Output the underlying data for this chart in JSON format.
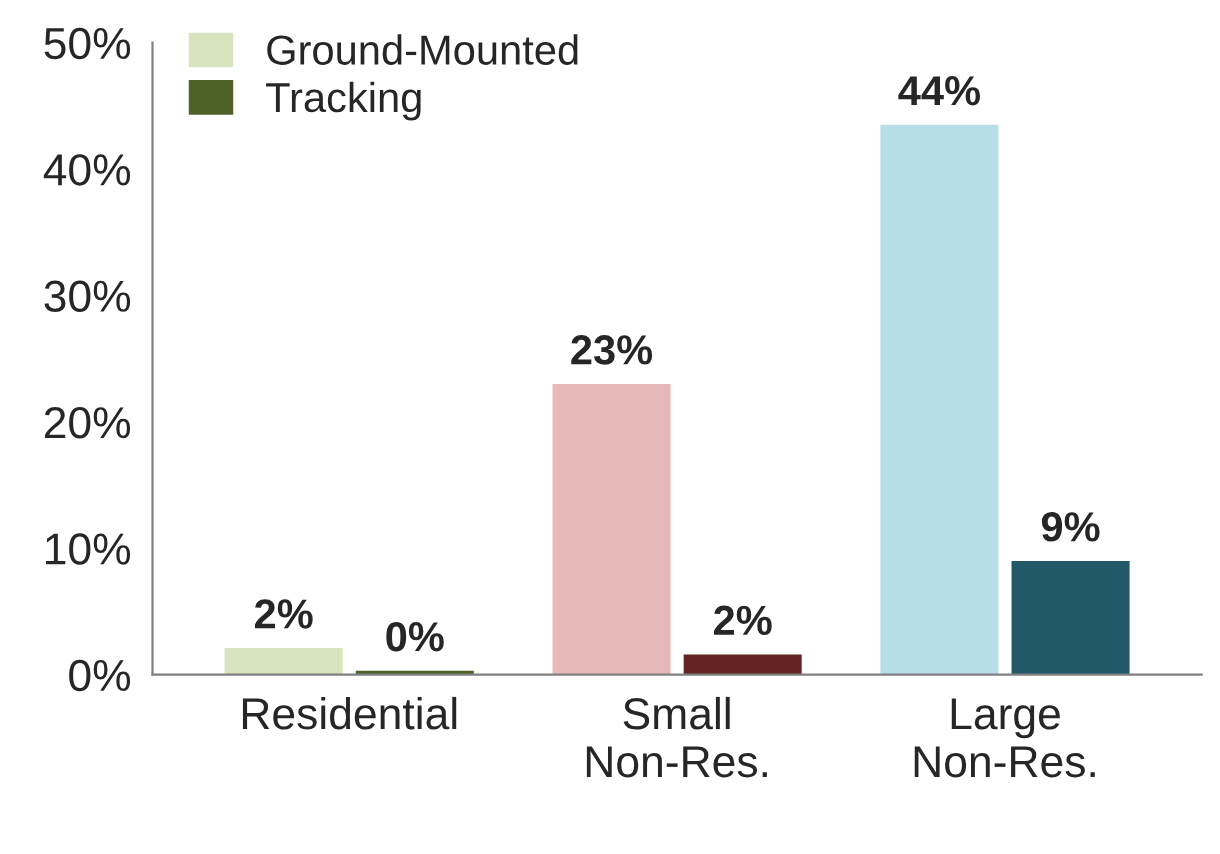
{
  "chart_data": {
    "type": "bar",
    "categories": [
      "Residential",
      "Small\nNon-Res.",
      "Large\nNon-Res."
    ],
    "series": [
      {
        "name": "Ground-Mounted",
        "color": "#d7e4bd",
        "colors": [
          "#d7e4bd",
          "#e6b9b8",
          "#b7dee8"
        ],
        "values": [
          2.1,
          23.0,
          43.5
        ],
        "value_labels": [
          "2%",
          "23%",
          "44%"
        ]
      },
      {
        "name": "Tracking",
        "color": "#4f6228",
        "colors": [
          "#4f6228",
          "#632523",
          "#215968"
        ],
        "values": [
          0.3,
          1.6,
          9.0
        ],
        "value_labels": [
          "0%",
          "2%",
          "9%"
        ]
      }
    ],
    "ylim": [
      0,
      50
    ],
    "yticks": [
      {
        "value": 0,
        "label": "0%"
      },
      {
        "value": 10,
        "label": "10%"
      },
      {
        "value": 20,
        "label": "20%"
      },
      {
        "value": 30,
        "label": "30%"
      },
      {
        "value": 40,
        "label": "40%"
      },
      {
        "value": 50,
        "label": "50%"
      }
    ],
    "grid": false,
    "legend": "top left"
  }
}
